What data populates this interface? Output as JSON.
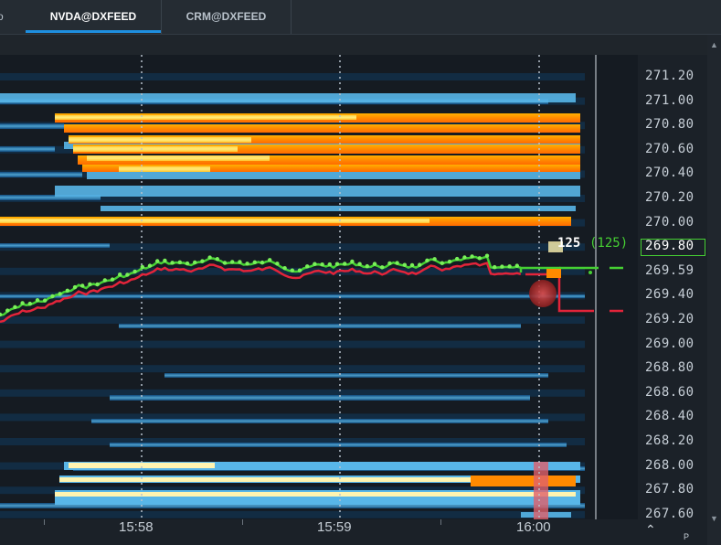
{
  "tabs": {
    "prev_fragment": "o",
    "items": [
      {
        "label": "NVDA@DXFEED",
        "active": true
      },
      {
        "label": "CRM@DXFEED",
        "active": false
      }
    ]
  },
  "colors": {
    "accent": "#1e8fe0",
    "bid_line": "#46d033",
    "ask_line": "#e3243a",
    "heat_low": "#0f4f86",
    "heat_mid": "#58b6e8",
    "heat_high": "#ff8a00",
    "heat_peak": "#ffeb7a"
  },
  "chart": {
    "current_volume": "125",
    "current_volume_paren": "(125)",
    "current_price": "269.80",
    "bid_marker_price": "269.59",
    "ask_marker_price": "269.20"
  },
  "chart_data": {
    "type": "heatmap",
    "title": "",
    "y_ticks": [
      "271.20",
      "271.00",
      "270.80",
      "270.60",
      "270.40",
      "270.20",
      "270.00",
      "269.80",
      "269.59",
      "269.40",
      "269.20",
      "269.00",
      "268.80",
      "268.60",
      "268.40",
      "268.20",
      "268.00",
      "267.80",
      "267.60"
    ],
    "x_ticks": [
      "15:58",
      "15:59",
      "16:00"
    ],
    "ylim": [
      267.55,
      271.32
    ],
    "grid": "vertical dotted at time ticks"
  },
  "axis": {
    "scroll_up_label": "^",
    "corner_fragment": "P"
  }
}
